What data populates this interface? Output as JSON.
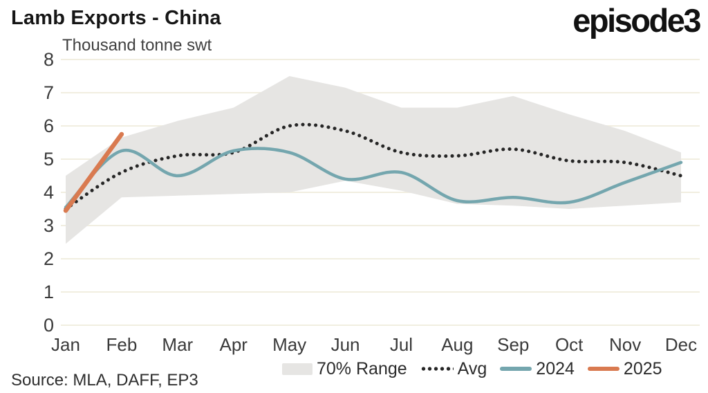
{
  "header": {
    "title": "Lamb Exports - China",
    "logo": "episode3"
  },
  "source_note": "Source: MLA, DAFF, EP3",
  "chart_data": {
    "type": "line",
    "title": "Lamb Exports - China",
    "ylabel": "Thousand tonne swt",
    "categories": [
      "Jan",
      "Feb",
      "Mar",
      "Apr",
      "May",
      "Jun",
      "Jul",
      "Aug",
      "Sep",
      "Oct",
      "Nov",
      "Dec"
    ],
    "ylim": [
      0,
      8
    ],
    "yticks": [
      0,
      1,
      2,
      3,
      4,
      5,
      6,
      7,
      8
    ],
    "grid": "horizontal",
    "legend_position": "bottom",
    "band": {
      "name": "70% Range",
      "color": "#e6e5e3",
      "upper": [
        4.5,
        5.65,
        6.15,
        6.55,
        7.5,
        7.15,
        6.55,
        6.55,
        6.9,
        6.35,
        5.85,
        5.2
      ],
      "lower": [
        2.45,
        3.85,
        3.9,
        3.95,
        4.0,
        4.35,
        4.05,
        3.65,
        3.6,
        3.5,
        3.6,
        3.7
      ]
    },
    "series": [
      {
        "name": "Avg",
        "style": "dotted",
        "color": "#262626",
        "values": [
          3.5,
          4.6,
          5.1,
          5.2,
          6.0,
          5.85,
          5.2,
          5.1,
          5.3,
          4.95,
          4.9,
          4.5
        ]
      },
      {
        "name": "2024",
        "style": "solid",
        "color": "#74a6ae",
        "values": [
          3.55,
          5.25,
          4.5,
          5.25,
          5.2,
          4.4,
          4.6,
          3.75,
          3.85,
          3.7,
          4.3,
          4.9
        ]
      },
      {
        "name": "2025",
        "style": "solid",
        "color": "#d97a50",
        "values": [
          3.45,
          5.75,
          null,
          null,
          null,
          null,
          null,
          null,
          null,
          null,
          null,
          null
        ]
      }
    ],
    "colors": {
      "grid": "#f1eee0",
      "axis_text": "#3a3a3a"
    }
  }
}
